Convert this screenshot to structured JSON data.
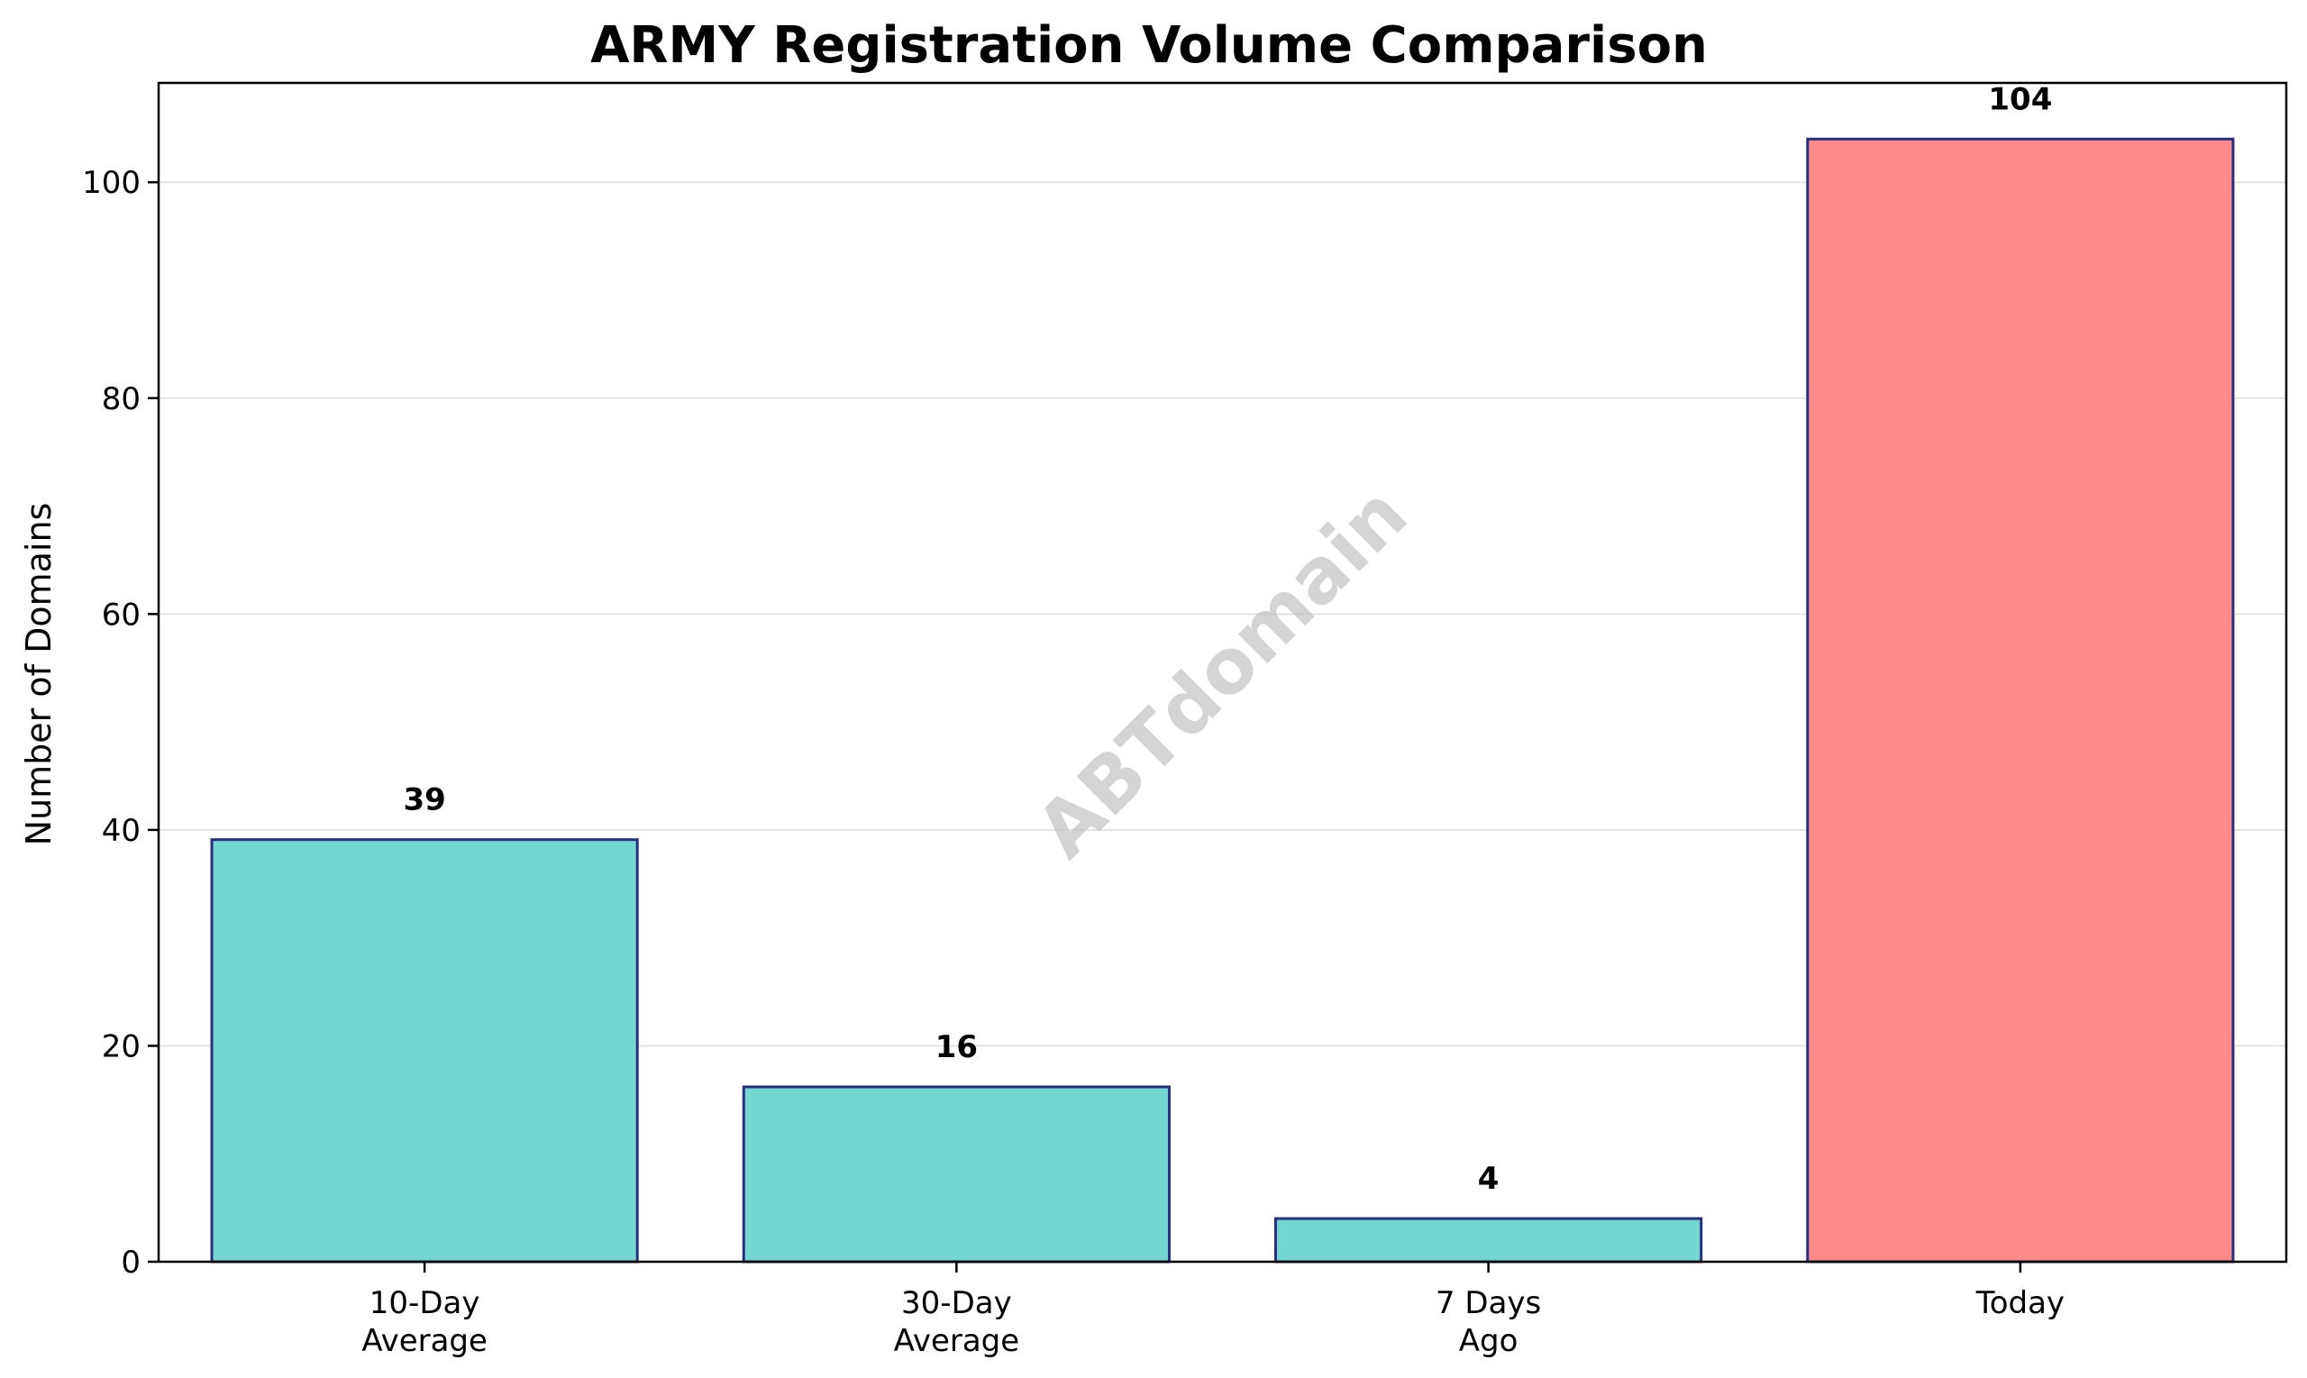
{
  "chart_data": {
    "type": "bar",
    "title": "ARMY Registration Volume Comparison",
    "xlabel": "",
    "ylabel": "Number of Domains",
    "categories": [
      [
        "10-Day",
        "Average"
      ],
      [
        "30-Day",
        "Average"
      ],
      [
        "7 Days",
        "Ago"
      ],
      [
        "Today"
      ]
    ],
    "values": [
      39.1,
      16.2,
      4,
      104
    ],
    "data_labels": [
      "39",
      "16",
      "4",
      "104"
    ],
    "colors": [
      "#74d6d0",
      "#74d6d0",
      "#74d6d0",
      "#ff8a89"
    ],
    "edge_color": "#27307f",
    "ylim": [
      0,
      109.2
    ],
    "yticks": [
      0,
      20,
      40,
      60,
      80,
      100
    ],
    "grid": "horizontal",
    "grid_color": "#e3e3e3",
    "legend": "none",
    "watermark": "ABTdomain"
  }
}
